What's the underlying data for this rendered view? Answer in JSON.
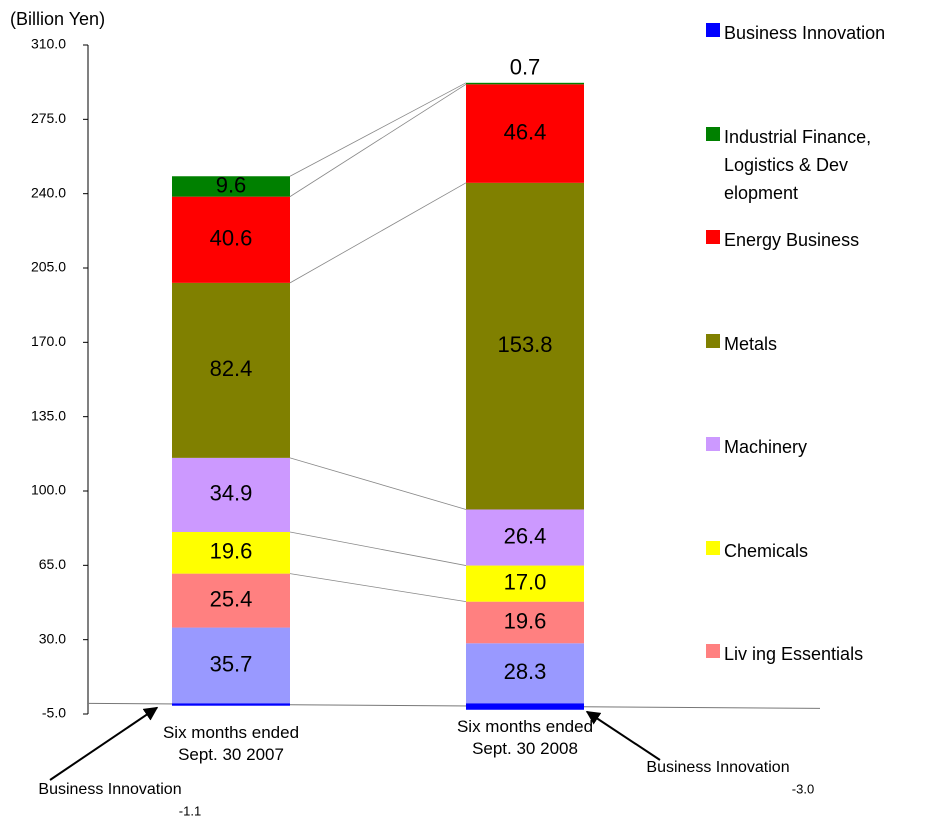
{
  "chart_data": {
    "type": "stacked_bar",
    "y_axis_label": "(Billion Yen)",
    "categories": [
      "Six months ended Sept. 30 2007",
      "Six months ended Sept. 30 2008"
    ],
    "ylim": [
      -5,
      310
    ],
    "yticks": [
      {
        "value": -5,
        "label": "-5.0"
      },
      {
        "value": 30,
        "label": "30.0"
      },
      {
        "value": 65,
        "label": "65.0"
      },
      {
        "value": 100,
        "label": "100.0"
      },
      {
        "value": 135,
        "label": "135.0"
      },
      {
        "value": 170,
        "label": "170.0"
      },
      {
        "value": 205,
        "label": "205.0"
      },
      {
        "value": 240,
        "label": "240.0"
      },
      {
        "value": 275,
        "label": "275.0"
      },
      {
        "value": 310,
        "label": "310.0"
      }
    ],
    "series": [
      {
        "name": "Business Innovation",
        "color": "#0000ff",
        "values": [
          -1.1,
          -3.0
        ],
        "value_labels": [
          "-1.1",
          "-3.0"
        ]
      },
      {
        "name": "Industrial Finance, Logistics & Dev elopment",
        "color": "#008000",
        "values": [
          9.6,
          0.7
        ]
      },
      {
        "name": "Energy  Business",
        "color": "#ff0000",
        "values": [
          40.6,
          46.4
        ]
      },
      {
        "name": "Metals",
        "color": "#808000",
        "values": [
          82.4,
          153.8
        ]
      },
      {
        "name": "Machinery",
        "color": "#cc99ff",
        "values": [
          34.9,
          26.4
        ]
      },
      {
        "name": "Chemicals",
        "color": "#ffff00",
        "values": [
          19.6,
          17.0
        ],
        "value_labels": [
          "19.6",
          "17.0"
        ]
      },
      {
        "name": "Liv ing Essentials",
        "color": "#ff8080",
        "values": [
          25.4,
          19.6
        ]
      },
      {
        "name": null,
        "color": "#9999ff",
        "values": [
          35.7,
          28.3
        ]
      }
    ]
  }
}
